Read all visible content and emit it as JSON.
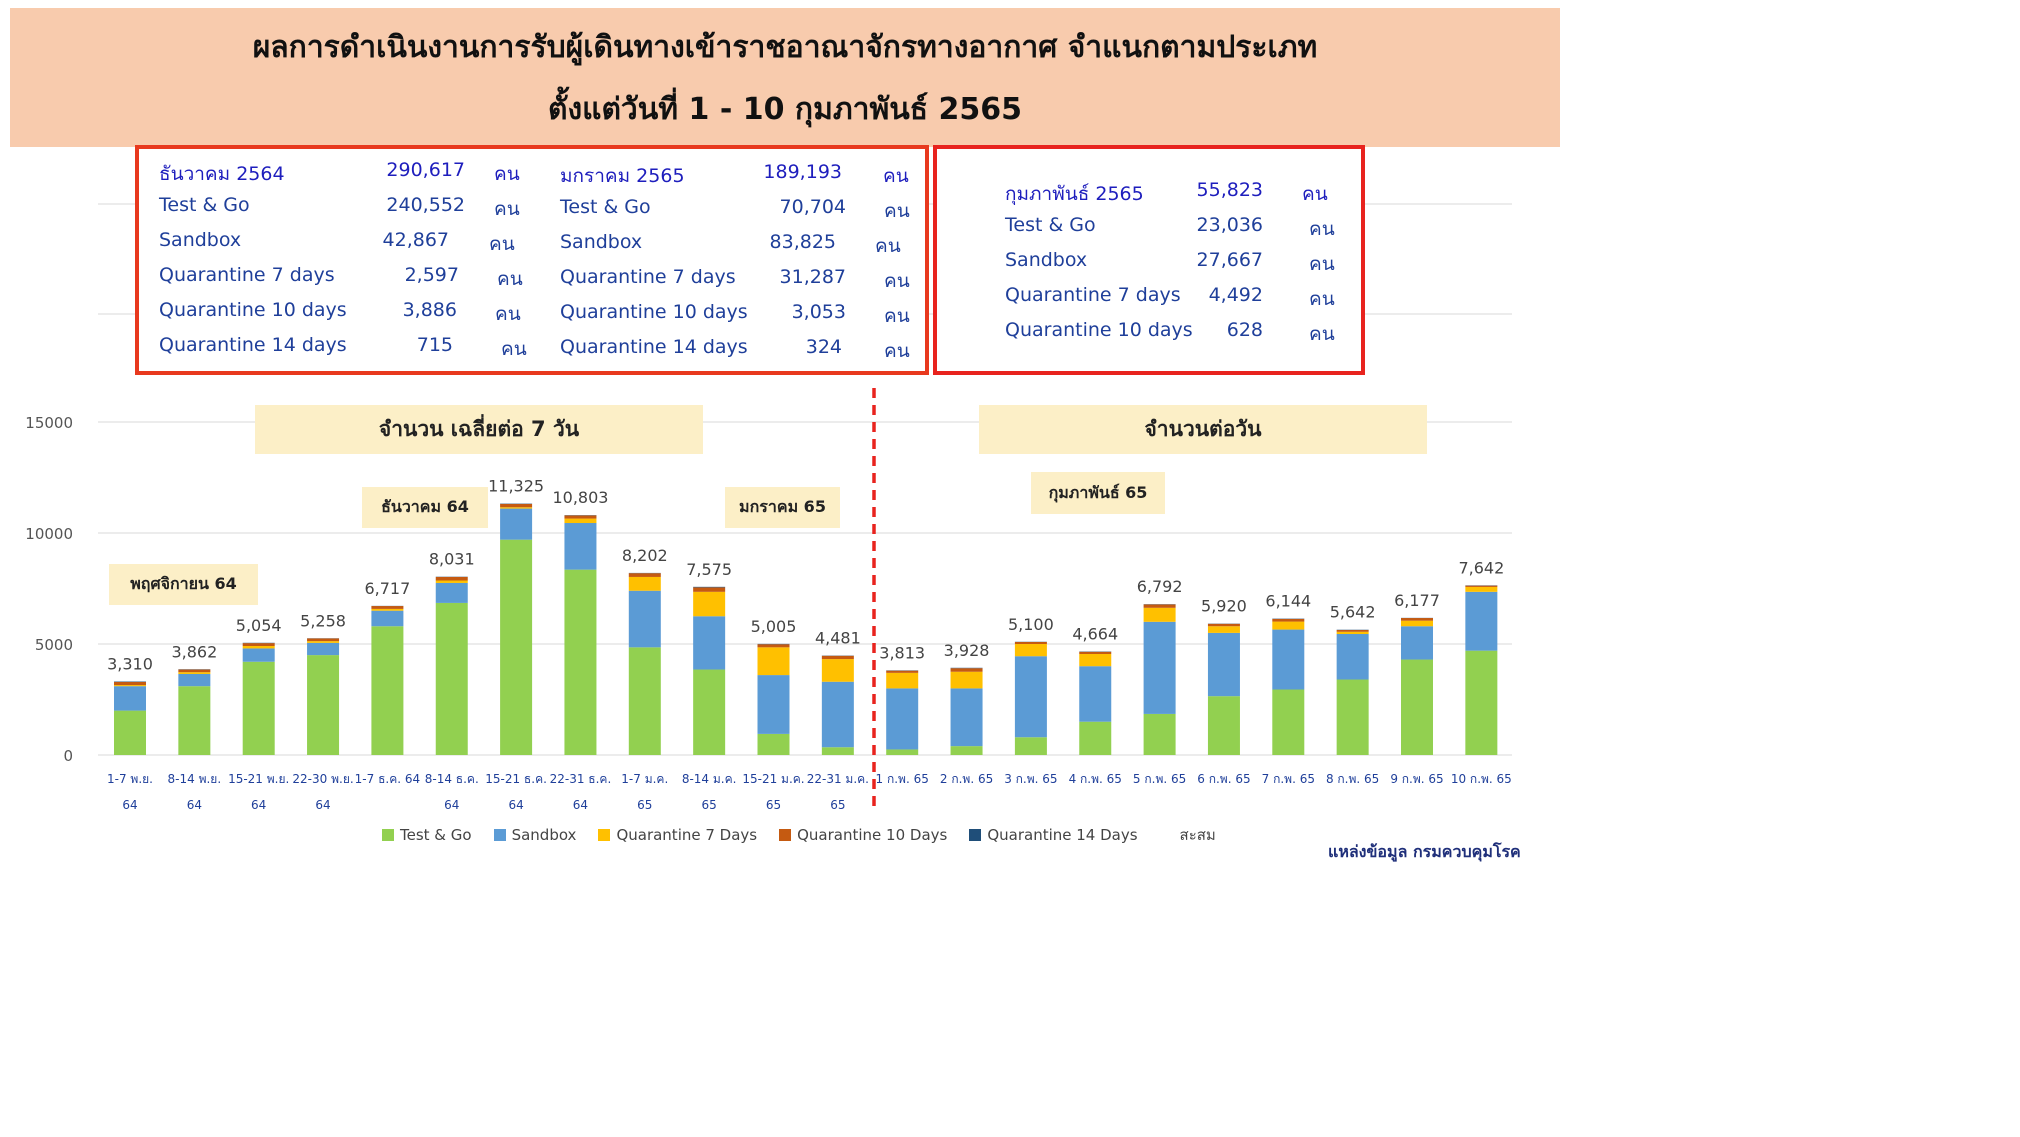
{
  "header": {
    "line1": "ผลการดำเนินงานการรับผู้เดินทางเข้าราชอาณาจักรทางอากาศ จำแนกตามประเภท",
    "line2": "ตั้งแต่วันที่  1 -  10 กุมภาพันธ์  2565"
  },
  "summary": {
    "dec": {
      "title": "ธันวาคม  2564",
      "total": "290,617",
      "unit": "คน",
      "rows": [
        {
          "label": "Test & Go",
          "value": "240,552",
          "unit": "คน"
        },
        {
          "label": "Sandbox",
          "value": "42,867",
          "unit": "คน"
        },
        {
          "label": "Quarantine 7 days",
          "value": "2,597",
          "unit": "คน"
        },
        {
          "label": "Quarantine 10 days",
          "value": "3,886",
          "unit": "คน"
        },
        {
          "label": "Quarantine 14 days",
          "value": "715",
          "unit": "คน"
        }
      ]
    },
    "jan": {
      "title": "มกราคม  2565",
      "total": "189,193",
      "unit": "คน",
      "rows": [
        {
          "label": "Test & Go",
          "value": "70,704",
          "unit": "คน"
        },
        {
          "label": "Sandbox",
          "value": "83,825",
          "unit": "คน"
        },
        {
          "label": "Quarantine 7 days",
          "value": "31,287",
          "unit": "คน"
        },
        {
          "label": "Quarantine 10 days",
          "value": "3,053",
          "unit": "คน"
        },
        {
          "label": "Quarantine 14 days",
          "value": "324",
          "unit": "คน"
        }
      ]
    },
    "feb": {
      "title": "กุมภาพันธ์  2565",
      "total": "55,823",
      "unit": "คน",
      "rows": [
        {
          "label": "Test & Go",
          "value": "23,036",
          "unit": "คน"
        },
        {
          "label": "Sandbox",
          "value": "27,667",
          "unit": "คน"
        },
        {
          "label": "Quarantine 7 days",
          "value": "4,492",
          "unit": "คน"
        },
        {
          "label": "Quarantine 10 days",
          "value": "628",
          "unit": "คน"
        }
      ]
    }
  },
  "banners": {
    "avg7": "จำนวน เฉลี่ยต่อ 7 วัน",
    "daily": "จำนวนต่อวัน",
    "nov": "พฤศจิกายน  64",
    "dec": "ธันวาคม  64",
    "jan": "มกราคม  65",
    "feb": "กุมภาพันธ์  65"
  },
  "colors": {
    "test_go": "#92d050",
    "sandbox": "#5b9bd5",
    "q7": "#ffc000",
    "q10": "#c55a11",
    "q14": "#1f4e79",
    "divider": "#e8231e"
  },
  "chart_data": {
    "type": "bar",
    "stacked": true,
    "ylim": [
      0,
      15000
    ],
    "yticks": [
      0,
      5000,
      10000,
      15000
    ],
    "grid": true,
    "legend_position": "bottom",
    "categories": [
      [
        "1-7 พ.ย.",
        "64"
      ],
      [
        "8-14 พ.ย.",
        "64"
      ],
      [
        "15-21  พ.ย.",
        "64"
      ],
      [
        "22-30  พ.ย.",
        "64"
      ],
      [
        "1-7 ธ.ค. 64",
        ""
      ],
      [
        "8-14 ธ.ค.",
        "64"
      ],
      [
        "15-21 ธ.ค.",
        "64"
      ],
      [
        "22-31 ธ.ค.",
        "64"
      ],
      [
        "1-7 ม.ค.",
        "65"
      ],
      [
        "8-14 ม.ค.",
        "65"
      ],
      [
        "15-21 ม.ค.",
        "65"
      ],
      [
        "22-31 ม.ค.",
        "65"
      ],
      [
        "1 ก.พ. 65",
        ""
      ],
      [
        "2 ก.พ. 65",
        ""
      ],
      [
        "3 ก.พ. 65",
        ""
      ],
      [
        "4 ก.พ. 65",
        ""
      ],
      [
        "5 ก.พ. 65",
        ""
      ],
      [
        "6 ก.พ. 65",
        ""
      ],
      [
        "7 ก.พ. 65",
        ""
      ],
      [
        "8 ก.พ. 65",
        ""
      ],
      [
        "9 ก.พ. 65",
        ""
      ],
      [
        "10 ก.พ. 65",
        ""
      ]
    ],
    "totals": [
      "3,310",
      "3,862",
      "5,054",
      "5,258",
      "6,717",
      "8,031",
      "11,325",
      "10,803",
      "8,202",
      "7,575",
      "5,005",
      "4,481",
      "3,813",
      "3,928",
      "5,100",
      "4,664",
      "6,792",
      "5,920",
      "6,144",
      "5,642",
      "6,177",
      "7,642"
    ],
    "series": [
      {
        "name": "Test & Go",
        "values": [
          2000,
          3100,
          4200,
          4500,
          5800,
          6850,
          9700,
          8350,
          4850,
          3850,
          950,
          350,
          250,
          400,
          800,
          1500,
          1850,
          2650,
          2950,
          3400,
          4300,
          4700
        ]
      },
      {
        "name": "Sandbox",
        "values": [
          1100,
          550,
          600,
          550,
          700,
          900,
          1400,
          2100,
          2550,
          2400,
          2650,
          2950,
          2750,
          2600,
          3650,
          2500,
          4150,
          2850,
          2700,
          2050,
          1500,
          2650
        ]
      },
      {
        "name": "Quarantine 7 Days",
        "values": [
          50,
          80,
          110,
          80,
          80,
          110,
          60,
          200,
          620,
          1100,
          1250,
          1020,
          700,
          750,
          550,
          550,
          630,
          300,
          360,
          100,
          250,
          220
        ]
      },
      {
        "name": "Quarantine 10 Days",
        "values": [
          140,
          120,
          130,
          120,
          130,
          160,
          150,
          140,
          170,
          200,
          140,
          150,
          100,
          160,
          90,
          100,
          150,
          110,
          120,
          80,
          120,
          60
        ]
      },
      {
        "name": "Quarantine 14 Days",
        "values": [
          20,
          12,
          14,
          8,
          7,
          11,
          15,
          13,
          12,
          25,
          15,
          11,
          13,
          18,
          10,
          14,
          12,
          10,
          14,
          12,
          7,
          12
        ]
      }
    ],
    "legend": [
      "Test & Go",
      "Sandbox",
      "Quarantine 7 Days",
      "Quarantine 10 Days",
      "Quarantine 14 Days",
      "สะสม"
    ]
  },
  "source": "แหล่งข้อมูล  กรมควบคุมโรค"
}
